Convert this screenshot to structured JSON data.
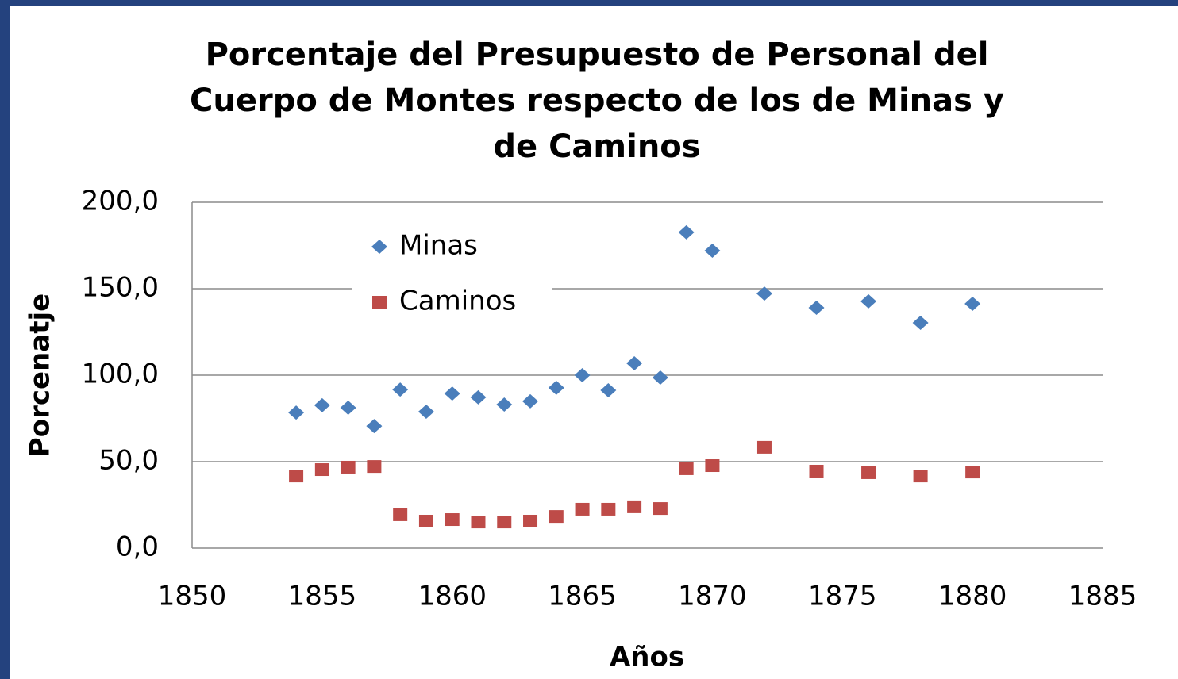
{
  "chart_data": {
    "type": "scatter",
    "title": "Porcentaje del Presupuesto de Personal del\nCuerpo de Montes respecto de los de Minas y\nde Caminos",
    "xlabel": "Años",
    "ylabel": "Porcenatje",
    "xlim": [
      1850,
      1885
    ],
    "xticks": [
      1850,
      1855,
      1860,
      1865,
      1870,
      1875,
      1880,
      1885
    ],
    "ylim": [
      0,
      200
    ],
    "yticks": [
      {
        "value": 0,
        "label": "0,0"
      },
      {
        "value": 50,
        "label": "50,0"
      },
      {
        "value": 100,
        "label": "100,0"
      },
      {
        "value": 150,
        "label": "150,0"
      },
      {
        "value": 200,
        "label": "200,0"
      }
    ],
    "grid": true,
    "legend": "upper left",
    "series": [
      {
        "name": "Minas",
        "color": "#4a7ebb",
        "marker": "diamond",
        "x": [
          1854,
          1855,
          1856,
          1857,
          1858,
          1859,
          1860,
          1861,
          1862,
          1863,
          1864,
          1865,
          1866,
          1867,
          1868,
          1869,
          1870,
          1872,
          1874,
          1876,
          1878,
          1880
        ],
        "values": [
          78.4,
          82.6,
          81.2,
          70.6,
          91.7,
          78.9,
          89.4,
          87.2,
          83.0,
          84.9,
          92.7,
          100.0,
          91.3,
          106.9,
          98.6,
          182.6,
          172.0,
          147.2,
          139.0,
          142.7,
          130.3,
          141.3
        ]
      },
      {
        "name": "Caminos",
        "color": "#be4b48",
        "marker": "square",
        "x": [
          1854,
          1855,
          1856,
          1857,
          1858,
          1859,
          1860,
          1861,
          1862,
          1863,
          1864,
          1865,
          1866,
          1867,
          1868,
          1869,
          1870,
          1872,
          1874,
          1876,
          1878,
          1880
        ],
        "values": [
          41.7,
          45.4,
          46.8,
          47.2,
          19.3,
          15.6,
          16.5,
          15.1,
          15.1,
          15.6,
          18.3,
          22.5,
          22.5,
          23.9,
          22.9,
          45.9,
          47.7,
          58.3,
          44.5,
          43.6,
          41.7,
          44.0
        ]
      }
    ]
  }
}
